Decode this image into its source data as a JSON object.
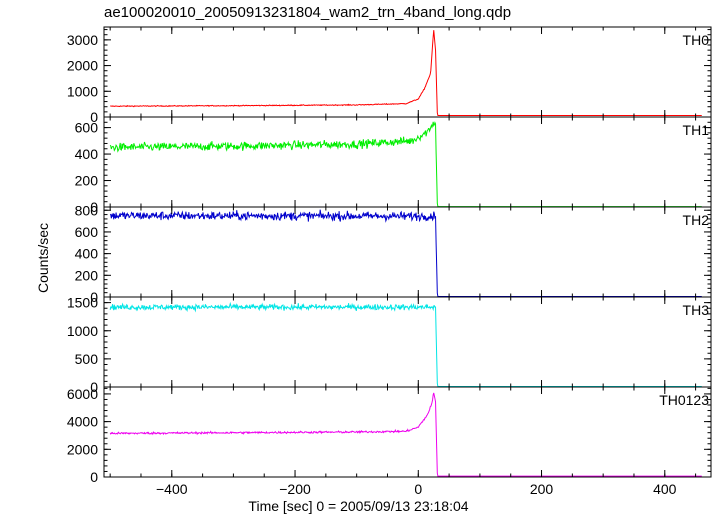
{
  "chart_data": {
    "type": "line",
    "title": "ae100020010_20050913231804_wam2_trn_4band_long.qdp",
    "xlabel": "Time [sec] 0 = 2005/09/13 23:18:04",
    "ylabel": "Counts/sec",
    "xlim": [
      -510,
      475
    ],
    "xticks": [
      -400,
      -200,
      0,
      200,
      400
    ],
    "grid": false,
    "panels": [
      {
        "name": "TH0",
        "color": "#ff0000",
        "ylim": [
          0,
          3500
        ],
        "yticks": [
          0,
          1000,
          2000,
          3000
        ],
        "noise": 12,
        "points": [
          [
            -500,
            420
          ],
          [
            -300,
            440
          ],
          [
            -100,
            470
          ],
          [
            -20,
            520
          ],
          [
            0,
            700
          ],
          [
            10,
            1100
          ],
          [
            20,
            1700
          ],
          [
            25,
            3400
          ],
          [
            28,
            2600
          ],
          [
            31,
            60
          ],
          [
            460,
            60
          ]
        ]
      },
      {
        "name": "TH1",
        "color": "#00ee00",
        "ylim": [
          0,
          680
        ],
        "yticks": [
          0,
          200,
          400,
          600
        ],
        "noise": 22,
        "points": [
          [
            -500,
            450
          ],
          [
            -300,
            460
          ],
          [
            -100,
            475
          ],
          [
            -10,
            500
          ],
          [
            15,
            570
          ],
          [
            25,
            640
          ],
          [
            28,
            620
          ],
          [
            31,
            3
          ],
          [
            460,
            3
          ]
        ]
      },
      {
        "name": "TH2",
        "color": "#0000cc",
        "ylim": [
          0,
          830
        ],
        "yticks": [
          0,
          200,
          400,
          600,
          800
        ],
        "noise": 28,
        "points": [
          [
            -500,
            750
          ],
          [
            -200,
            748
          ],
          [
            0,
            745
          ],
          [
            28,
            748
          ],
          [
            31,
            5
          ],
          [
            460,
            5
          ]
        ]
      },
      {
        "name": "TH3",
        "color": "#00e5e5",
        "ylim": [
          0,
          1600
        ],
        "yticks": [
          0,
          500,
          1000,
          1500
        ],
        "noise": 35,
        "points": [
          [
            -500,
            1420
          ],
          [
            -200,
            1420
          ],
          [
            0,
            1420
          ],
          [
            28,
            1420
          ],
          [
            31,
            8
          ],
          [
            460,
            8
          ]
        ]
      },
      {
        "name": "TH0123",
        "color": "#ee00ee",
        "ylim": [
          0,
          6500
        ],
        "yticks": [
          0,
          2000,
          4000,
          6000
        ],
        "noise": 50,
        "points": [
          [
            -500,
            3150
          ],
          [
            -300,
            3200
          ],
          [
            -100,
            3250
          ],
          [
            -20,
            3300
          ],
          [
            0,
            3600
          ],
          [
            15,
            4500
          ],
          [
            22,
            5300
          ],
          [
            25,
            6100
          ],
          [
            28,
            5400
          ],
          [
            31,
            60
          ],
          [
            460,
            60
          ]
        ]
      }
    ]
  }
}
